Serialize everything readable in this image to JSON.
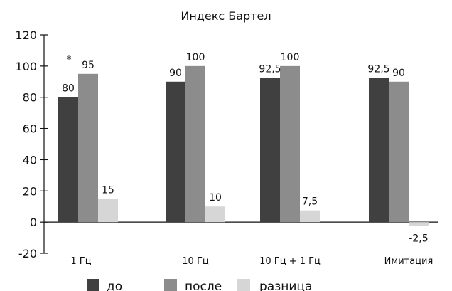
{
  "chart_data": {
    "type": "bar",
    "title": "Индекс Бартел",
    "xlabel": "",
    "ylabel": "",
    "ylim": [
      -20,
      120
    ],
    "yticks": [
      -20,
      0,
      20,
      40,
      60,
      80,
      100,
      120
    ],
    "grid": false,
    "legend_position": "bottom",
    "categories": [
      "1 Гц",
      "10 Гц",
      "10 Гц + 1 Гц",
      "Имитация"
    ],
    "series": [
      {
        "name": "до",
        "color": "#404040",
        "values": [
          80,
          90,
          92.5,
          92.5
        ],
        "labels": [
          "80",
          "90",
          "92,5",
          "92,5"
        ]
      },
      {
        "name": "после",
        "color": "#8c8c8c",
        "values": [
          95,
          100,
          100,
          90
        ],
        "labels": [
          "95",
          "100",
          "100",
          "90"
        ]
      },
      {
        "name": "разница",
        "color": "#d6d6d6",
        "values": [
          15,
          10,
          7.5,
          -2.5
        ],
        "labels": [
          "15",
          "10",
          "7,5",
          "-2,5"
        ]
      }
    ],
    "annotations": [
      {
        "text": "*",
        "category_index": 0
      }
    ]
  }
}
